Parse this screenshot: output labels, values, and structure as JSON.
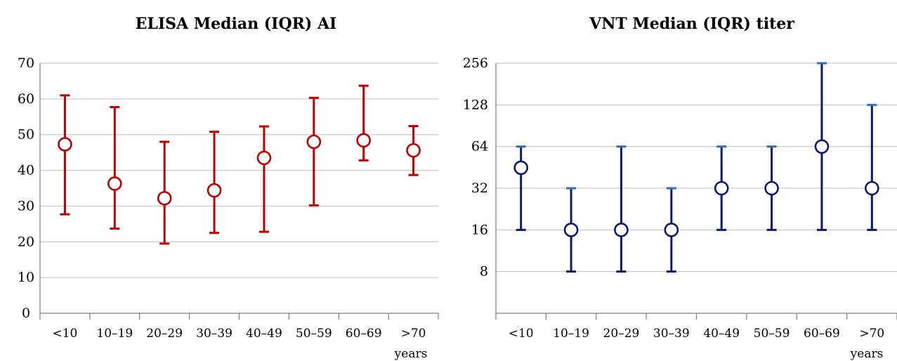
{
  "chart_data": [
    {
      "type": "scatter",
      "title": "ELISA Median (IQR) AI",
      "xlabel": "years",
      "ylabel": "",
      "categories": [
        "<10",
        "10–19",
        "20–29",
        "30–39",
        "40–49",
        "50–59",
        "60–69",
        ">70"
      ],
      "ylim": [
        0,
        70
      ],
      "yticks": [
        0,
        10,
        20,
        30,
        40,
        50,
        60,
        70
      ],
      "ytick_labels": [
        "0",
        "10",
        "20",
        "30",
        "40",
        "50",
        "60",
        "70"
      ],
      "grid": true,
      "scale": "linear",
      "color": "#c00000",
      "series": [
        {
          "median": [
            47.3,
            36.3,
            32.2,
            34.4,
            43.5,
            48.0,
            48.4,
            45.6
          ],
          "q1": [
            27.7,
            23.7,
            19.5,
            22.5,
            22.8,
            30.2,
            42.8,
            38.7
          ],
          "q3": [
            61.0,
            57.7,
            48.0,
            50.8,
            52.3,
            60.3,
            63.7,
            52.4
          ]
        }
      ]
    },
    {
      "type": "scatter",
      "title": "VNT Median (IQR) titer",
      "xlabel": "years",
      "ylabel": "",
      "categories": [
        "<10",
        "10–19",
        "20–29",
        "30–39",
        "40–49",
        "50–59",
        "60–69",
        ">70"
      ],
      "ylim": [
        4,
        256
      ],
      "yticks": [
        4,
        8,
        16,
        32,
        64,
        128,
        256
      ],
      "ytick_labels": [
        "",
        "8",
        "16",
        "32",
        "64",
        "128",
        "256"
      ],
      "grid": true,
      "scale": "log2",
      "color": "#0d1a6b",
      "cap_color": "#2e6fc0",
      "series": [
        {
          "median": [
            45,
            16,
            16,
            16,
            32,
            32,
            64,
            32
          ],
          "q1": [
            16,
            8,
            8,
            8,
            16,
            16,
            16,
            16
          ],
          "q3": [
            64,
            32,
            64,
            32,
            64,
            64,
            256,
            128
          ]
        }
      ]
    }
  ]
}
